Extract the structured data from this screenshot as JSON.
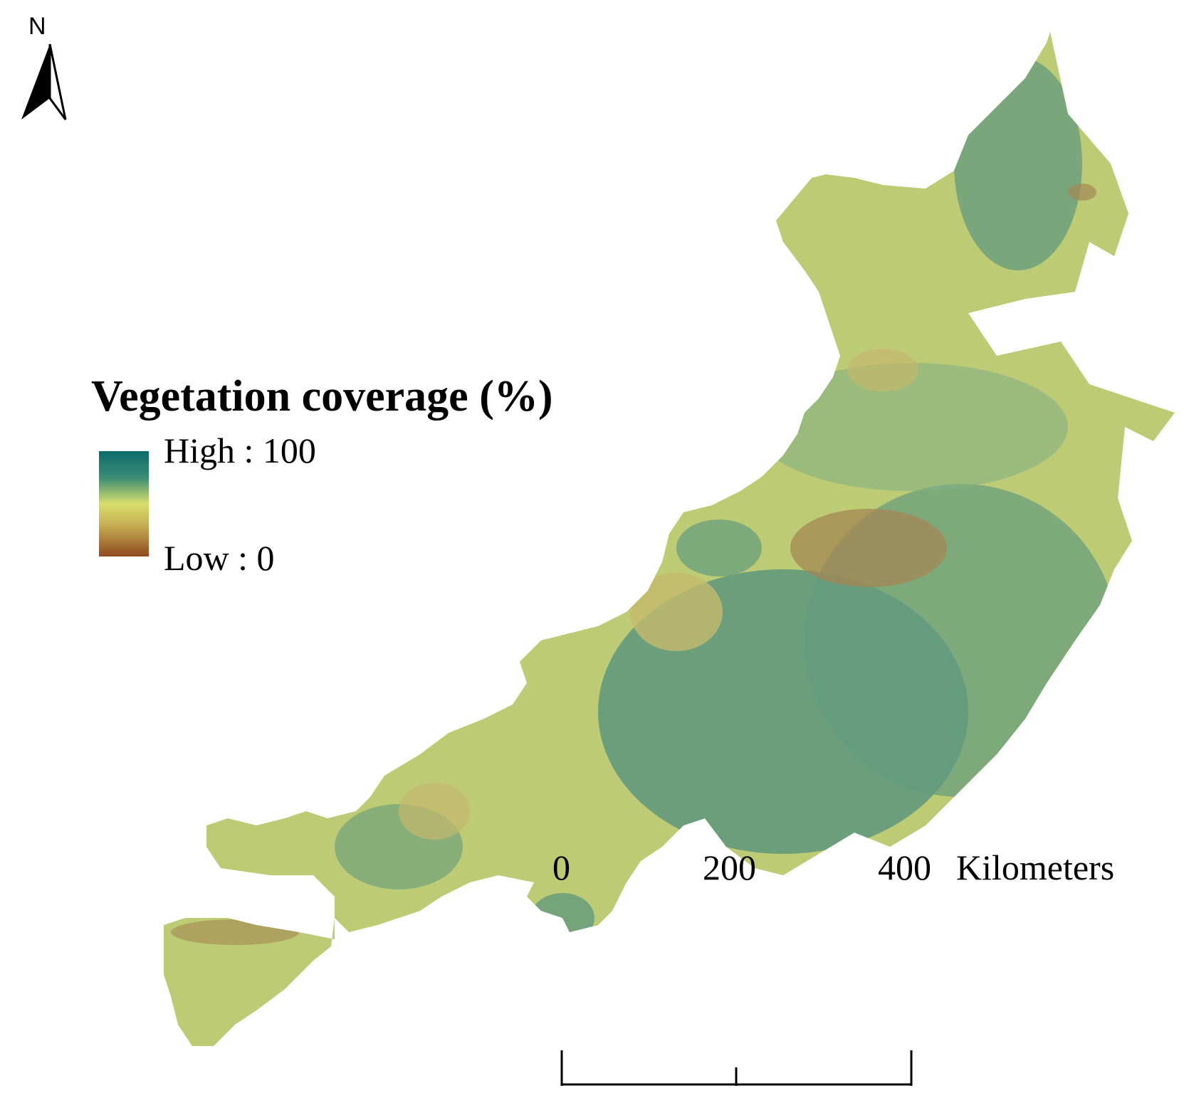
{
  "north_arrow": {
    "letter": "N",
    "icon": "north-arrow-icon"
  },
  "legend": {
    "title": "Vegetation coverage (%)",
    "high_label": "High : 100",
    "low_label": "Low : 0",
    "colors": {
      "high": "#0c6b6b",
      "mid": "#d8de6a",
      "low": "#8f4a1f"
    }
  },
  "scale_bar": {
    "ticks": [
      "0",
      "200",
      "400"
    ],
    "unit": "Kilometers"
  },
  "palette": {
    "dense": "#136f6d",
    "medium": "#4f9a7a",
    "light": "#b8c95e",
    "sparse": "#c6a74f",
    "bare": "#8a4b22"
  }
}
